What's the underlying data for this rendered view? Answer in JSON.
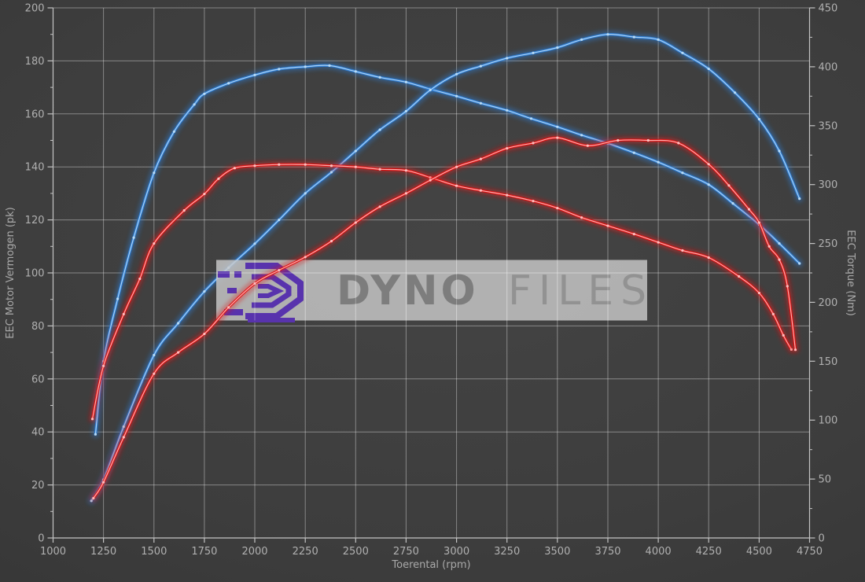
{
  "watermark": {
    "brand_part1": "DYNO",
    "brand_part2": "FILES",
    "logo_color": "#5833ad",
    "box_color": "#c9c9c9"
  },
  "colors": {
    "background": "#3d3d3d",
    "grid": "#ffffff",
    "axis": "#c4c4c4",
    "tick_text": "#b0b0b0",
    "blue_curve": "#3c86db",
    "blue_core": "#b9dcf7",
    "red_curve": "#e32222",
    "red_core": "#ffc0c0"
  },
  "chart_data": {
    "type": "line",
    "title": "",
    "xlabel": "Toerental (rpm)",
    "ylabel_left": "EEC Motor Vermogen (pk)",
    "ylabel_right": "EEC Torque (Nm)",
    "x_range": [
      1000,
      4750
    ],
    "y_left_range": [
      0,
      200
    ],
    "y_right_range": [
      0,
      450
    ],
    "x_ticks": [
      1000,
      1250,
      1500,
      1750,
      2000,
      2250,
      2500,
      2750,
      3000,
      3250,
      3500,
      3750,
      4000,
      4250,
      4500,
      4750
    ],
    "y_left_ticks": [
      0,
      20,
      40,
      60,
      80,
      100,
      120,
      140,
      160,
      180,
      200
    ],
    "y_right_ticks": [
      0,
      50,
      100,
      150,
      200,
      250,
      300,
      350,
      400,
      450
    ],
    "grid": true,
    "legend": "none",
    "series": [
      {
        "name": "torque-blue",
        "axis": "right",
        "unit": "Nm",
        "color": "#2e7fd8",
        "core": "#b9dcf7",
        "points": [
          [
            1210,
            88
          ],
          [
            1250,
            150
          ],
          [
            1320,
            203
          ],
          [
            1400,
            255
          ],
          [
            1500,
            310
          ],
          [
            1600,
            345
          ],
          [
            1700,
            368
          ],
          [
            1750,
            377
          ],
          [
            1870,
            386
          ],
          [
            2000,
            393
          ],
          [
            2120,
            398
          ],
          [
            2250,
            400
          ],
          [
            2370,
            401
          ],
          [
            2500,
            396
          ],
          [
            2620,
            391
          ],
          [
            2750,
            387
          ],
          [
            2870,
            381
          ],
          [
            3000,
            375
          ],
          [
            3120,
            369
          ],
          [
            3250,
            363
          ],
          [
            3370,
            356
          ],
          [
            3500,
            349
          ],
          [
            3620,
            342
          ],
          [
            3750,
            335
          ],
          [
            3880,
            327
          ],
          [
            4000,
            319
          ],
          [
            4120,
            310
          ],
          [
            4250,
            300
          ],
          [
            4370,
            284
          ],
          [
            4500,
            266
          ],
          [
            4600,
            250
          ],
          [
            4700,
            233
          ]
        ]
      },
      {
        "name": "power-blue",
        "axis": "left",
        "unit": "pk",
        "color": "#2e7fd8",
        "core": "#b9dcf7",
        "points": [
          [
            1190,
            14
          ],
          [
            1250,
            22
          ],
          [
            1350,
            42
          ],
          [
            1500,
            69
          ],
          [
            1620,
            81
          ],
          [
            1750,
            93
          ],
          [
            1870,
            102
          ],
          [
            2000,
            111
          ],
          [
            2120,
            120
          ],
          [
            2250,
            130
          ],
          [
            2380,
            138
          ],
          [
            2500,
            146
          ],
          [
            2620,
            154
          ],
          [
            2750,
            161
          ],
          [
            2870,
            169
          ],
          [
            3000,
            175
          ],
          [
            3120,
            178
          ],
          [
            3250,
            181
          ],
          [
            3380,
            183
          ],
          [
            3500,
            185
          ],
          [
            3620,
            188
          ],
          [
            3750,
            190
          ],
          [
            3880,
            189
          ],
          [
            4000,
            188
          ],
          [
            4120,
            183
          ],
          [
            4250,
            177
          ],
          [
            4380,
            168
          ],
          [
            4500,
            158
          ],
          [
            4600,
            146
          ],
          [
            4700,
            128
          ]
        ]
      },
      {
        "name": "torque-red",
        "axis": "right",
        "unit": "Nm",
        "color": "#e01212",
        "core": "#ffc0c0",
        "points": [
          [
            1195,
            101
          ],
          [
            1250,
            146
          ],
          [
            1350,
            190
          ],
          [
            1430,
            220
          ],
          [
            1500,
            250
          ],
          [
            1650,
            278
          ],
          [
            1750,
            292
          ],
          [
            1820,
            305
          ],
          [
            1900,
            314
          ],
          [
            2000,
            316
          ],
          [
            2120,
            317
          ],
          [
            2250,
            317
          ],
          [
            2380,
            316
          ],
          [
            2500,
            315
          ],
          [
            2620,
            313
          ],
          [
            2750,
            312
          ],
          [
            2870,
            306
          ],
          [
            3000,
            299
          ],
          [
            3120,
            295
          ],
          [
            3250,
            291
          ],
          [
            3380,
            286
          ],
          [
            3500,
            280
          ],
          [
            3620,
            272
          ],
          [
            3750,
            265
          ],
          [
            3880,
            258
          ],
          [
            4000,
            251
          ],
          [
            4120,
            244
          ],
          [
            4250,
            238
          ],
          [
            4400,
            222
          ],
          [
            4500,
            208
          ],
          [
            4570,
            190
          ],
          [
            4620,
            172
          ],
          [
            4660,
            160
          ]
        ]
      },
      {
        "name": "power-red",
        "axis": "left",
        "unit": "pk",
        "color": "#e01212",
        "core": "#ffc0c0",
        "points": [
          [
            1200,
            15
          ],
          [
            1250,
            21
          ],
          [
            1350,
            38
          ],
          [
            1500,
            62
          ],
          [
            1620,
            70
          ],
          [
            1750,
            77
          ],
          [
            1870,
            87
          ],
          [
            2000,
            96
          ],
          [
            2120,
            101
          ],
          [
            2250,
            106
          ],
          [
            2380,
            112
          ],
          [
            2500,
            119
          ],
          [
            2620,
            125
          ],
          [
            2750,
            130
          ],
          [
            2870,
            135
          ],
          [
            3000,
            140
          ],
          [
            3120,
            143
          ],
          [
            3250,
            147
          ],
          [
            3380,
            149
          ],
          [
            3500,
            151
          ],
          [
            3650,
            148
          ],
          [
            3800,
            150
          ],
          [
            3950,
            150
          ],
          [
            4100,
            149
          ],
          [
            4250,
            141
          ],
          [
            4350,
            133
          ],
          [
            4450,
            124
          ],
          [
            4500,
            119
          ],
          [
            4550,
            110
          ],
          [
            4600,
            105
          ],
          [
            4640,
            95
          ],
          [
            4680,
            71
          ]
        ]
      }
    ]
  }
}
